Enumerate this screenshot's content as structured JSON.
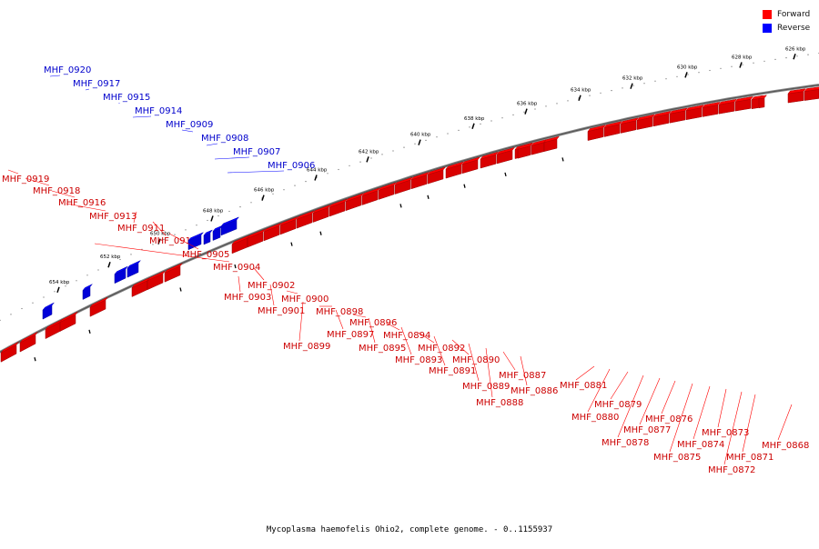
{
  "legend": {
    "forward_label": "Forward",
    "reverse_label": "Reverse",
    "forward_color": "#ff0000",
    "reverse_color": "#0000ff"
  },
  "caption": "Mycoplasma haemofelis Ohio2, complete genome. - 0..1155937",
  "ticks": [
    "654 kbp",
    "652 kbp",
    "650 kbp",
    "648 kbp",
    "646 kbp",
    "644 kbp",
    "642 kbp",
    "640 kbp",
    "638 kbp",
    "636 kbp",
    "634 kbp",
    "632 kbp",
    "630 kbp",
    "628 kbp",
    "626 kbp"
  ],
  "genes": [
    {
      "name": "MHF_0920",
      "strand": "reverse"
    },
    {
      "name": "MHF_0919",
      "strand": "forward"
    },
    {
      "name": "MHF_0918",
      "strand": "forward"
    },
    {
      "name": "MHF_0917",
      "strand": "reverse"
    },
    {
      "name": "MHF_0916",
      "strand": "forward"
    },
    {
      "name": "MHF_0915",
      "strand": "reverse"
    },
    {
      "name": "MHF_0914",
      "strand": "reverse"
    },
    {
      "name": "MHF_0913",
      "strand": "forward"
    },
    {
      "name": "MHF_0911",
      "strand": "forward"
    },
    {
      "name": "MHF_0910",
      "strand": "forward"
    },
    {
      "name": "MHF_0909",
      "strand": "reverse"
    },
    {
      "name": "MHF_0908",
      "strand": "reverse"
    },
    {
      "name": "MHF_0907",
      "strand": "reverse"
    },
    {
      "name": "MHF_0906",
      "strand": "reverse"
    },
    {
      "name": "MHF_0905",
      "strand": "forward"
    },
    {
      "name": "MHF_0904",
      "strand": "forward"
    },
    {
      "name": "MHF_0903",
      "strand": "forward"
    },
    {
      "name": "MHF_0902",
      "strand": "forward"
    },
    {
      "name": "MHF_0901",
      "strand": "forward"
    },
    {
      "name": "MHF_0900",
      "strand": "forward"
    },
    {
      "name": "MHF_0899",
      "strand": "forward"
    },
    {
      "name": "MHF_0898",
      "strand": "forward"
    },
    {
      "name": "MHF_0897",
      "strand": "forward"
    },
    {
      "name": "MHF_0896",
      "strand": "forward"
    },
    {
      "name": "MHF_0895",
      "strand": "forward"
    },
    {
      "name": "MHF_0894",
      "strand": "forward"
    },
    {
      "name": "MHF_0893",
      "strand": "forward"
    },
    {
      "name": "MHF_0892",
      "strand": "forward"
    },
    {
      "name": "MHF_0891",
      "strand": "forward"
    },
    {
      "name": "MHF_0890",
      "strand": "forward"
    },
    {
      "name": "MHF_0889",
      "strand": "forward"
    },
    {
      "name": "MHF_0888",
      "strand": "forward"
    },
    {
      "name": "MHF_0887",
      "strand": "forward"
    },
    {
      "name": "MHF_0886",
      "strand": "forward"
    },
    {
      "name": "MHF_0881",
      "strand": "forward"
    },
    {
      "name": "MHF_0880",
      "strand": "forward"
    },
    {
      "name": "MHF_0879",
      "strand": "forward"
    },
    {
      "name": "MHF_0878",
      "strand": "forward"
    },
    {
      "name": "MHF_0877",
      "strand": "forward"
    },
    {
      "name": "MHF_0876",
      "strand": "forward"
    },
    {
      "name": "MHF_0875",
      "strand": "forward"
    },
    {
      "name": "MHF_0874",
      "strand": "forward"
    },
    {
      "name": "MHF_0873",
      "strand": "forward"
    },
    {
      "name": "MHF_0872",
      "strand": "forward"
    },
    {
      "name": "MHF_0871",
      "strand": "forward"
    },
    {
      "name": "MHF_0868",
      "strand": "forward"
    }
  ]
}
